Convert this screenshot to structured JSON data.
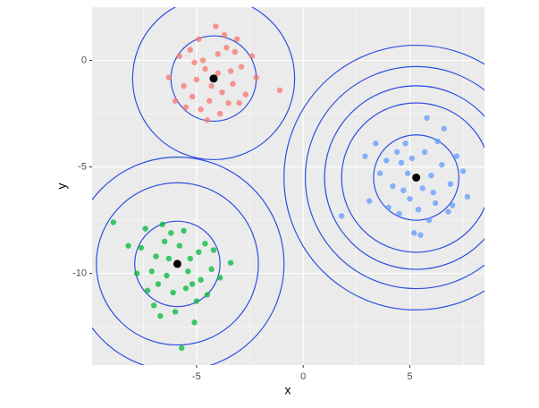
{
  "chart_data": {
    "type": "scatter",
    "x_label": "x",
    "y_label": "y",
    "xlim": [
      -9.9,
      8.5
    ],
    "ylim": [
      -14.3,
      2.5
    ],
    "xticks": [
      -5,
      0,
      5
    ],
    "yticks": [
      0,
      -5,
      -10
    ],
    "xminor": [
      -7.5,
      -2.5,
      2.5,
      7.5
    ],
    "yminor": [
      2.5,
      -2.5,
      -7.5,
      -12.5
    ],
    "grid": true,
    "series": [
      {
        "color": "#F8766D",
        "x": [
          -5.3,
          -3.1,
          -4.8,
          -3.5,
          -5.6,
          -2.9,
          -4.0,
          -4.6,
          -3.8,
          -4.4,
          -5.0,
          -3.3,
          -2.4,
          -6.3,
          -4.1,
          -3.9,
          -5.8,
          -1.1,
          -4.9,
          -3.6,
          -4.3,
          -5.2,
          -3.0,
          -4.7,
          -3.4,
          -2.7,
          -5.5,
          -4.0,
          -6.0,
          -3.7,
          -2.2,
          -5.1,
          -4.5,
          -3.2
        ],
        "y": [
          0.5,
          1.0,
          -2.3,
          -2.0,
          -1.2,
          -0.3,
          0.3,
          -0.4,
          -1.5,
          -1.9,
          -0.9,
          -1.1,
          0.2,
          -0.8,
          1.6,
          -2.5,
          0.2,
          -1.4,
          1.0,
          0.6,
          -1.2,
          -1.7,
          -2.0,
          0.0,
          -0.5,
          -1.6,
          -2.2,
          -0.6,
          -1.9,
          1.2,
          -0.8,
          -0.1,
          -2.8,
          0.4
        ]
      },
      {
        "color": "#00BA38",
        "x": [
          -6.5,
          -5.2,
          -7.1,
          -4.9,
          -6.1,
          -5.6,
          -7.6,
          -4.3,
          -6.8,
          -5.0,
          -6.3,
          -5.4,
          -8.2,
          -4.6,
          -6.0,
          -7.3,
          -5.8,
          -3.9,
          -6.6,
          -5.1,
          -8.9,
          -6.9,
          -4.5,
          -7.8,
          -5.5,
          -6.2,
          -4.2,
          -7.0,
          -5.7,
          -6.4,
          -3.4,
          -7.4,
          -5.3,
          -6.7,
          -4.8
        ],
        "y": [
          -8.5,
          -10.5,
          -9.9,
          -9.0,
          -10.9,
          -8.0,
          -8.8,
          -9.8,
          -10.5,
          -11.3,
          -9.3,
          -9.9,
          -8.7,
          -8.6,
          -11.8,
          -10.8,
          -8.7,
          -10.2,
          -7.7,
          -12.3,
          -7.6,
          -9.2,
          -11.0,
          -10.0,
          -10.7,
          -8.1,
          -8.9,
          -11.5,
          -13.5,
          -10.1,
          -9.5,
          -7.9,
          -9.3,
          -12.0,
          -10.3
        ]
      },
      {
        "color": "#619CFF",
        "x": [
          4.6,
          6.1,
          5.0,
          6.5,
          4.2,
          5.7,
          3.9,
          6.9,
          5.4,
          4.8,
          6.3,
          3.1,
          7.2,
          5.9,
          4.5,
          6.0,
          4.9,
          5.6,
          7.7,
          2.9,
          5.2,
          6.8,
          4.0,
          5.8,
          3.6,
          6.6,
          4.4,
          7.0,
          5.1,
          5.5,
          1.8,
          6.2,
          4.7,
          7.5,
          3.4
        ],
        "y": [
          -4.8,
          -6.2,
          -6.5,
          -4.9,
          -5.9,
          -4.3,
          -4.7,
          -5.8,
          -7.0,
          -3.9,
          -3.8,
          -6.6,
          -4.5,
          -7.5,
          -7.2,
          -5.4,
          -5.3,
          -6.0,
          -6.4,
          -4.5,
          -8.1,
          -7.1,
          -6.9,
          -2.7,
          -5.3,
          -3.2,
          -4.3,
          -6.8,
          -4.6,
          -8.2,
          -7.3,
          -6.7,
          -6.1,
          -5.2,
          -3.9
        ]
      }
    ],
    "centers": {
      "color": "#000000",
      "x": [
        -4.2,
        -5.9,
        5.3
      ],
      "y": [
        -0.85,
        -9.55,
        -5.5
      ]
    },
    "contours": {
      "color": "#2E4FE0",
      "cx": [
        -4.2,
        -4.2,
        -5.9,
        -5.9,
        -5.9,
        5.3,
        5.3,
        5.3,
        5.3,
        5.3
      ],
      "cy": [
        -0.85,
        -0.85,
        -9.55,
        -9.55,
        -9.55,
        -5.5,
        -5.5,
        -5.5,
        -5.5,
        -5.5
      ],
      "r": [
        2.0,
        3.8,
        2.0,
        3.8,
        5.0,
        2.0,
        3.5,
        4.3,
        5.2,
        6.2
      ]
    }
  }
}
